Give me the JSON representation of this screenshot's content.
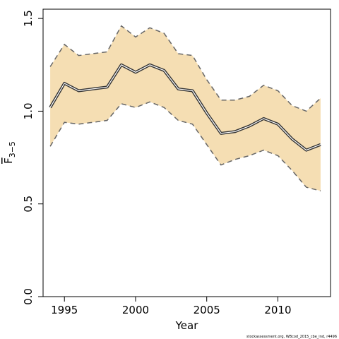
{
  "chart_data": {
    "type": "line",
    "xlabel": "Year",
    "ylabel": {
      "base": "F",
      "subscript": "3−5"
    },
    "xlim": [
      1993.5,
      2013.7
    ],
    "ylim": [
      0.0,
      1.55
    ],
    "xticks": [
      1995,
      2000,
      2005,
      2010
    ],
    "xtick_labels": [
      "1995",
      "2000",
      "2005",
      "2010"
    ],
    "yticks": [
      0.0,
      0.5,
      1.0,
      1.5
    ],
    "ytick_labels": [
      "0.0",
      "0.5",
      "1.0",
      "1.5"
    ],
    "x": [
      1994,
      1995,
      1996,
      1997,
      1998,
      1999,
      2000,
      2001,
      2002,
      2003,
      2004,
      2005,
      2006,
      2007,
      2008,
      2009,
      2010,
      2011,
      2012,
      2013
    ],
    "series": [
      {
        "role": "estimate",
        "values": [
          1.02,
          1.15,
          1.11,
          1.12,
          1.13,
          1.25,
          1.21,
          1.25,
          1.22,
          1.12,
          1.11,
          0.99,
          0.88,
          0.89,
          0.92,
          0.96,
          0.93,
          0.85,
          0.79,
          0.82
        ]
      },
      {
        "role": "upper",
        "values": [
          1.24,
          1.36,
          1.3,
          1.31,
          1.32,
          1.46,
          1.4,
          1.45,
          1.42,
          1.31,
          1.3,
          1.17,
          1.06,
          1.06,
          1.08,
          1.14,
          1.11,
          1.03,
          1.0,
          1.07
        ]
      },
      {
        "role": "lower",
        "values": [
          0.81,
          0.94,
          0.93,
          0.94,
          0.95,
          1.04,
          1.02,
          1.05,
          1.02,
          0.95,
          0.93,
          0.82,
          0.71,
          0.74,
          0.76,
          0.79,
          0.76,
          0.68,
          0.59,
          0.57
        ]
      }
    ],
    "grid": false,
    "band_color": "#f5deb3",
    "line_color": "#333333",
    "credit": "stockassessment.org, WBcod_2015_cbe_ind, r4496"
  }
}
